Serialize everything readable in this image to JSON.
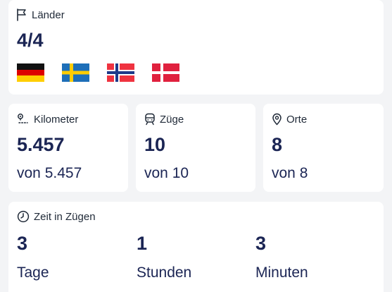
{
  "countries": {
    "label": "Länder",
    "icon": "flag-icon",
    "value": "4/4",
    "flags": [
      {
        "country": "Deutschland",
        "icon": "germany-flag-icon"
      },
      {
        "country": "Schweden",
        "icon": "sweden-flag-icon"
      },
      {
        "country": "Norwegen",
        "icon": "norway-flag-icon"
      },
      {
        "country": "Dänemark",
        "icon": "denmark-flag-icon"
      }
    ]
  },
  "stats": [
    {
      "label": "Kilometer",
      "icon": "route-icon",
      "value": "5.457",
      "total": "von 5.457"
    },
    {
      "label": "Züge",
      "icon": "train-icon",
      "value": "10",
      "total": "von 10"
    },
    {
      "label": "Orte",
      "icon": "map-pin-icon",
      "value": "8",
      "total": "von 8"
    }
  ],
  "time": {
    "label": "Zeit in Zügen",
    "icon": "clock-icon",
    "days": {
      "value": "3",
      "unit": "Tage"
    },
    "hours": {
      "value": "1",
      "unit": "Stunden"
    },
    "minutes": {
      "value": "3",
      "unit": "Minuten"
    }
  },
  "colors": {
    "background": "#f3f4f6",
    "card": "#ffffff",
    "text_dark": "#1b2554"
  }
}
